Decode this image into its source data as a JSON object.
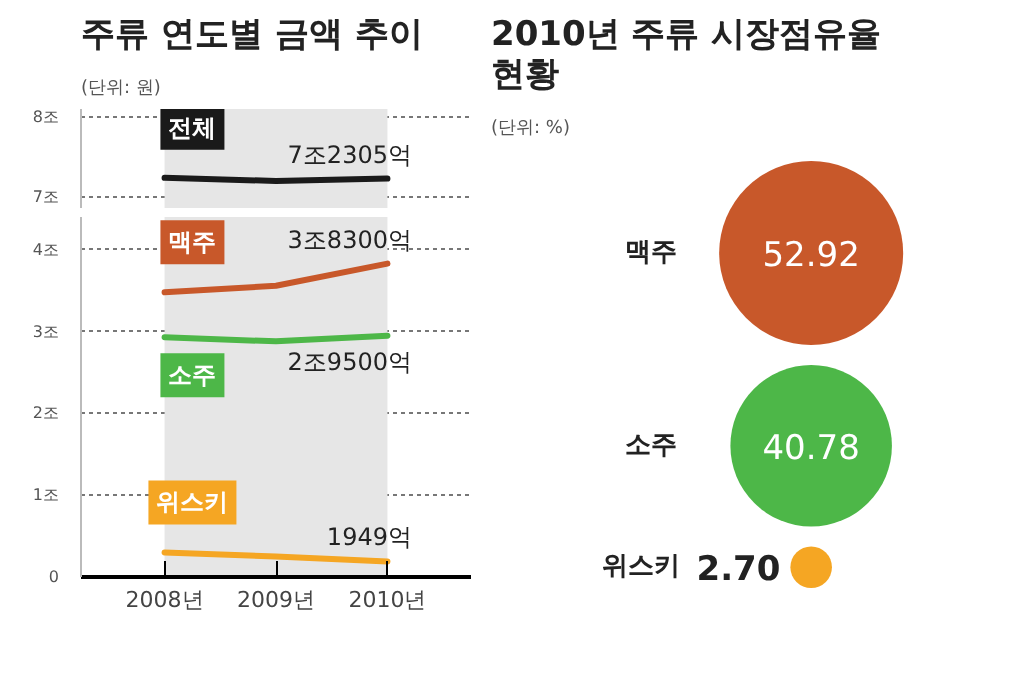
{
  "chart_data": [
    {
      "type": "line",
      "title": "주류 연도별 금액 추이",
      "subtitle": "(단위: 원)",
      "categories": [
        "2008년",
        "2009년",
        "2010년"
      ],
      "ylim": [
        6.85,
        8.1
      ],
      "yticks": [
        {
          "value": 7,
          "label": "7조"
        },
        {
          "value": 8,
          "label": "8조"
        }
      ],
      "grid": "y",
      "tick_labels": "y",
      "bands": [
        {
          "axis": "x",
          "from": "2008년",
          "to": "2010년",
          "color": "#e6e6e6"
        }
      ],
      "series": [
        {
          "name": "전체",
          "color": "#1a1a1a",
          "values": [
            7.24,
            7.2,
            7.23
          ]
        }
      ],
      "annotations": [
        {
          "text": "7조2305억",
          "x": "2010년",
          "y": 7.23
        }
      ]
    },
    {
      "type": "line",
      "categories": [
        "2008년",
        "2009년",
        "2010년"
      ],
      "ylim": [
        0,
        4.4
      ],
      "yticks": [
        {
          "value": 0,
          "label": "0"
        },
        {
          "value": 1,
          "label": "1조"
        },
        {
          "value": 2,
          "label": "2조"
        },
        {
          "value": 3,
          "label": "3조"
        },
        {
          "value": 4,
          "label": "4조"
        }
      ],
      "grid": "y",
      "bands": [
        {
          "axis": "x",
          "from": "2008년",
          "to": "2010년",
          "color": "#e6e6e6"
        }
      ],
      "series": [
        {
          "name": "맥주",
          "color": "#c8582a",
          "values": [
            3.48,
            3.56,
            3.83
          ]
        },
        {
          "name": "소주",
          "color": "#4db748",
          "values": [
            2.93,
            2.88,
            2.95
          ]
        },
        {
          "name": "위스키",
          "color": "#f5a623",
          "values": [
            0.3,
            0.25,
            0.19
          ]
        }
      ],
      "annotations": [
        {
          "text": "3조8300억",
          "x": "2010년",
          "y": 3.83
        },
        {
          "text": "2조9500억",
          "x": "2010년",
          "y": 2.95
        },
        {
          "text": "1949억",
          "x": "2010년",
          "y": 0.19
        }
      ]
    },
    {
      "type": "other",
      "title": "2010년 주류 시장점유율 현황",
      "subtitle": "(단위: %)",
      "categories": [
        "맥주",
        "소주",
        "위스키"
      ],
      "values": [
        52.92,
        40.78,
        2.7
      ],
      "value_labels": [
        "52.92",
        "40.78",
        "2.70"
      ],
      "colors": [
        "#c8582a",
        "#4db748",
        "#f5a623"
      ]
    }
  ]
}
